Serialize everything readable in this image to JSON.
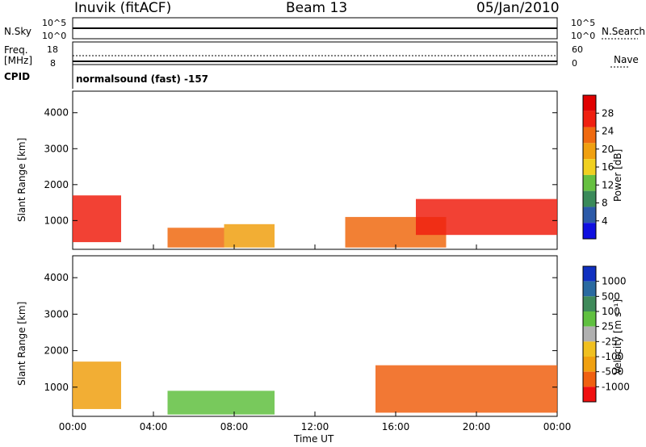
{
  "header": {
    "station": "Inuvik (fitACF)",
    "beam": "Beam 13",
    "date": "05/Jan/2010"
  },
  "strip_panels": {
    "nsky_label": "N.Sky",
    "nsky_ticks": [
      "10^5",
      "10^0"
    ],
    "nsearch_label": "N.Search",
    "nsearch_ticks": [
      "10^5",
      "10^0"
    ],
    "freq_label": "Freq.",
    "freq_unit": "[MHz]",
    "freq_ticks": [
      "18",
      "8"
    ],
    "nave_label": "Nave",
    "nave_ticks": [
      "60",
      "0"
    ],
    "cpid_label": "CPID",
    "cpid_value": "normalsound (fast) -157"
  },
  "colors": {
    "power_scale": [
      "#1010e0",
      "#2c5aa8",
      "#3a8a5a",
      "#66c040",
      "#f0d020",
      "#f0a010",
      "#f06a10",
      "#f02010",
      "#e00000"
    ],
    "velocity_scale": [
      "#1030c0",
      "#2a6aa0",
      "#3f8a5a",
      "#60c040",
      "#b0b0b0",
      "#f0c020",
      "#f0a010",
      "#f06010",
      "#f01010"
    ]
  },
  "chart_data": [
    {
      "type": "heatmap",
      "quantity": "Power",
      "ylabel": "Slant Range [km]",
      "ytick_labels": [
        "1000",
        "2000",
        "3000",
        "4000"
      ],
      "ylim": [
        200,
        4600
      ],
      "colorbar_label": "Power [dB]",
      "colorbar_ticks": [
        "4",
        "8",
        "12",
        "16",
        "20",
        "24",
        "28"
      ],
      "colorbar_range": [
        0,
        32
      ],
      "regions": [
        {
          "t_start": 0.0,
          "t_end": 2.4,
          "r_low": 400,
          "r_high": 1700,
          "level": 26
        },
        {
          "t_start": 4.7,
          "t_end": 7.5,
          "r_low": 250,
          "r_high": 800,
          "level": 22
        },
        {
          "t_start": 7.5,
          "t_end": 10.0,
          "r_low": 250,
          "r_high": 900,
          "level": 20
        },
        {
          "t_start": 13.5,
          "t_end": 18.5,
          "r_low": 250,
          "r_high": 1100,
          "level": 22
        },
        {
          "t_start": 17.0,
          "t_end": 24.0,
          "r_low": 600,
          "r_high": 1600,
          "level": 25
        }
      ]
    },
    {
      "type": "heatmap",
      "quantity": "Velocity",
      "ylabel": "Slant Range [km]",
      "ytick_labels": [
        "1000",
        "2000",
        "3000",
        "4000"
      ],
      "ylim": [
        200,
        4600
      ],
      "colorbar_label": "Velocity [m s⁻¹]",
      "colorbar_ticks": [
        "1000",
        "500",
        "100",
        "25",
        "-25",
        "-100",
        "-500",
        "-1000"
      ],
      "regions": [
        {
          "t_start": 0.0,
          "t_end": 2.4,
          "r_low": 400,
          "r_high": 1700,
          "level": "-100"
        },
        {
          "t_start": 4.7,
          "t_end": 10.0,
          "r_low": 250,
          "r_high": 900,
          "level": "100"
        },
        {
          "t_start": 15.0,
          "t_end": 24.0,
          "r_low": 300,
          "r_high": 1600,
          "level": "-500"
        }
      ],
      "xlabel": "Time UT",
      "xtick_labels": [
        "00:00",
        "04:00",
        "08:00",
        "12:00",
        "16:00",
        "20:00",
        "00:00"
      ],
      "xlim": [
        0,
        24
      ]
    }
  ]
}
